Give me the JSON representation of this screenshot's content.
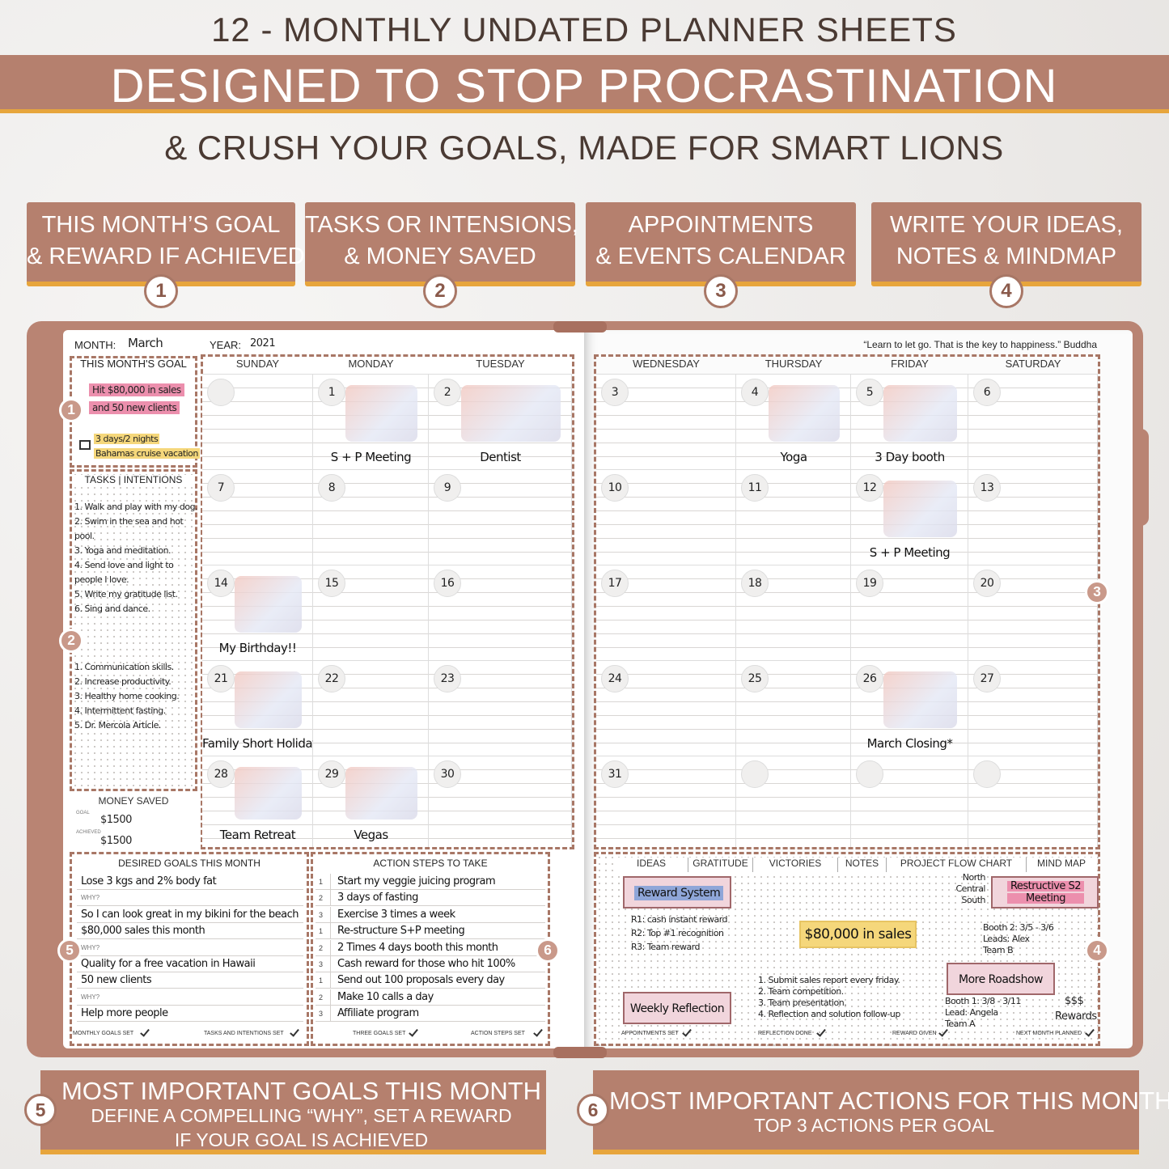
{
  "header": {
    "line1": "12 - MONTHLY UNDATED PLANNER SHEETS",
    "line2": "DESIGNED TO STOP PROCRASTINATION",
    "line3": "& CRUSH YOUR GOALS, MADE FOR SMART LIONS"
  },
  "features": [
    {
      "number": "1",
      "lines": [
        "THIS MONTH’S GOAL",
        "& REWARD IF ACHIEVED"
      ]
    },
    {
      "number": "2",
      "lines": [
        "TASKS OR INTENSIONS,",
        "& MONEY SAVED"
      ]
    },
    {
      "number": "3",
      "lines": [
        "APPOINTMENTS",
        "& EVENTS CALENDAR"
      ]
    },
    {
      "number": "4",
      "lines": [
        "WRITE YOUR IDEAS,",
        "NOTES & MINDMAP"
      ]
    }
  ],
  "planner": {
    "month_label": "MONTH:",
    "month": "March",
    "year_label": "YEAR:",
    "year": "2021",
    "quote": "“Learn to let go. That is the key to happiness.” Buddha",
    "callouts": [
      "1",
      "2",
      "3",
      "4",
      "5",
      "6"
    ],
    "goal": {
      "title": "THIS MONTH'S GOAL",
      "goal_lines": [
        "Hit $80,000 in sales",
        "and 50 new clients"
      ],
      "reward_lines": [
        "3 days/2 nights",
        "Bahamas cruise vacation"
      ]
    },
    "tasks": {
      "title": "TASKS | INTENTIONS",
      "list1": [
        "1. Walk and play with my dog.",
        "2. Swim in the sea and hot",
        "pool.",
        "3. Yoga and meditation.",
        "4. Send love and light to",
        "people I love.",
        "5. Write my gratitude list.",
        "6. Sing and dance."
      ],
      "list2": [
        "1. Communication skills.",
        "2. Increase productivity.",
        "3. Healthy home cooking.",
        "4. Intermittent fasting.",
        "5. Dr. Mercola Article."
      ]
    },
    "money": {
      "title": "MONEY SAVED",
      "goal_label": "GOAL",
      "goal": "$1500",
      "achieved_label": "ACHIEVED",
      "achieved": "$1500"
    },
    "days": [
      "SUNDAY",
      "MONDAY",
      "TUESDAY",
      "WEDNESDAY",
      "THURSDAY",
      "FRIDAY",
      "SATURDAY"
    ],
    "weeks": [
      [
        {
          "day": null
        },
        {
          "day": "1",
          "event": "S + P Meeting"
        },
        {
          "day": "2",
          "event": "Dentist"
        },
        {
          "day": "3"
        },
        {
          "day": "4",
          "event": "Yoga"
        },
        {
          "day": "5",
          "event": "3 Day booth"
        },
        {
          "day": "6"
        }
      ],
      [
        {
          "day": "7"
        },
        {
          "day": "8"
        },
        {
          "day": "9"
        },
        {
          "day": "10"
        },
        {
          "day": "11"
        },
        {
          "day": "12",
          "event": "S + P Meeting"
        },
        {
          "day": "13"
        }
      ],
      [
        {
          "day": "14",
          "event": "My Birthday!!"
        },
        {
          "day": "15"
        },
        {
          "day": "16"
        },
        {
          "day": "17"
        },
        {
          "day": "18"
        },
        {
          "day": "19"
        },
        {
          "day": "20"
        }
      ],
      [
        {
          "day": "21",
          "event": "Family Short Holiday"
        },
        {
          "day": "22"
        },
        {
          "day": "23"
        },
        {
          "day": "24"
        },
        {
          "day": "25"
        },
        {
          "day": "26",
          "event": "March Closing*"
        },
        {
          "day": "27"
        }
      ],
      [
        {
          "day": "28",
          "event": "Team Retreat"
        },
        {
          "day": "29",
          "event": "Vegas"
        },
        {
          "day": "30"
        },
        {
          "day": "31"
        },
        {
          "day": null
        },
        {
          "day": null
        },
        {
          "day": null
        }
      ]
    ],
    "desired_goals": {
      "title": "DESIRED GOALS THIS MONTH",
      "lines": [
        "Lose 3 kgs and 2% body fat",
        "WHY?",
        "So I can look great in my bikini for the beach",
        "$80,000 sales this month",
        "WHY?",
        "Quality for a free vacation in Hawaii",
        "50 new clients",
        "WHY?",
        "Help more people"
      ],
      "footer": [
        "MONTHLY GOALS SET",
        "TASKS AND INTENTIONS SET"
      ]
    },
    "action_steps": {
      "title": "ACTION STEPS TO TAKE",
      "rows": [
        {
          "n": "1",
          "text": "Start my veggie juicing program"
        },
        {
          "n": "2",
          "text": "3 days of fasting"
        },
        {
          "n": "3",
          "text": "Exercise 3 times a week"
        },
        {
          "n": "1",
          "text": "Re-structure S+P meeting"
        },
        {
          "n": "2",
          "text": "2 Times 4 days booth this month"
        },
        {
          "n": "3",
          "text": "Cash reward for those who hit 100%"
        },
        {
          "n": "1",
          "text": "Send out 100 proposals every day"
        },
        {
          "n": "2",
          "text": "Make 10 calls a day"
        },
        {
          "n": "3",
          "text": "Affiliate program"
        }
      ],
      "footer": [
        "THREE GOALS SET",
        "ACTION STEPS SET"
      ]
    },
    "mind_map": {
      "tabs": [
        "IDEAS",
        "GRATITUDE",
        "VICTORIES",
        "NOTES",
        "PROJECT FLOW CHART",
        "MIND MAP"
      ],
      "reward_system": "Reward System",
      "reward_notes": [
        "R1: cash instant reward",
        "R2: Top #1 recognition",
        "R3: Team reward"
      ],
      "center": "$80,000 in sales",
      "regions": [
        "North",
        "Central",
        "South"
      ],
      "meeting": [
        "Restructive S2",
        "Meeting"
      ],
      "booth2": [
        "Booth 2: 3/5 - 3/6",
        "Leads: Alex",
        "Team B"
      ],
      "weekly_reflection": "Weekly Reflection",
      "reflection_notes": [
        "1. Submit sales report every friday.",
        "2. Team competition.",
        "3. Team presentation.",
        "4. Reflection and solution follow-up"
      ],
      "roadshow": "More Roadshow",
      "booth1": [
        "Booth 1: 3/8 - 3/11",
        "Lead: Angela",
        "Team A"
      ],
      "rewards": [
        "$$$",
        "Rewards"
      ],
      "footer": [
        "APPOINTMENTS SET",
        "REFLECTION DONE",
        "REWARD GIVEN",
        "NEXT MONTH PLANNED"
      ]
    }
  },
  "bottom": [
    {
      "number": "5",
      "title": "MOST IMPORTANT GOALS THIS MONTH",
      "lines": [
        "DEFINE A COMPELLING “WHY”, SET A REWARD",
        "IF YOUR GOAL IS ACHIEVED"
      ]
    },
    {
      "number": "6",
      "title": "MOST IMPORTANT ACTIONS FOR THIS MONTH",
      "lines": [
        "TOP 3 ACTIONS PER GOAL"
      ]
    }
  ]
}
